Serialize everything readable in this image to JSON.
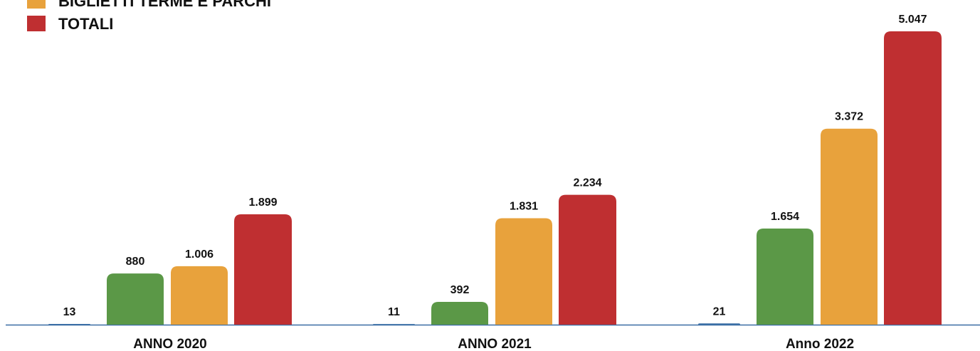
{
  "chart_data": {
    "type": "bar",
    "categories": [
      "ANNO 2020",
      "ANNO 2021",
      "Anno 2022"
    ],
    "series": [
      {
        "color": "#3a6ea5",
        "values": [
          13,
          11,
          21
        ],
        "value_labels": [
          "13",
          "11",
          "21"
        ]
      },
      {
        "color": "#5b9847",
        "values": [
          880,
          392,
          1654
        ],
        "value_labels": [
          "880",
          "392",
          "1.654"
        ]
      },
      {
        "name": "BIGLIETTI TERME E PARCHI",
        "color": "#e8a23c",
        "values": [
          1006,
          1831,
          3372
        ],
        "value_labels": [
          "1.006",
          "1.831",
          "3.372"
        ]
      },
      {
        "name": "TOTALI",
        "color": "#bf2f31",
        "values": [
          1899,
          2234,
          5047
        ],
        "value_labels": [
          "1.899",
          "2.234",
          "5.047"
        ]
      }
    ]
  }
}
